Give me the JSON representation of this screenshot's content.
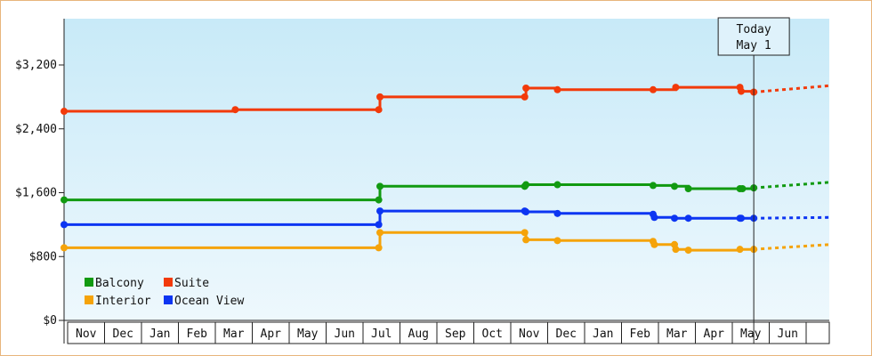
{
  "chart_data": {
    "type": "line",
    "line_style": "step",
    "background": "gradient light-blue",
    "grid": false,
    "legend_position": "bottom-left",
    "x_ticks": [
      "Nov",
      "Dec",
      "Jan",
      "Feb",
      "Mar",
      "Apr",
      "May",
      "Jun",
      "Jul",
      "Aug",
      "Sep",
      "Oct",
      "Nov",
      "Dec",
      "Jan",
      "Feb",
      "Mar",
      "Apr",
      "May",
      "Jun"
    ],
    "x_range": [
      "2013-10-30",
      "2015-06-30"
    ],
    "y_ticks": [
      "$0",
      "$800",
      "$1,600",
      "$2,400",
      "$3,200"
    ],
    "ylim": [
      0,
      3200
    ],
    "today_marker": {
      "line1": "Today",
      "line2": "May 1",
      "date": "2015-05-01"
    },
    "series": [
      {
        "name": "Balcony",
        "color": "#119a11",
        "points": [
          [
            "2013-10-30",
            1510
          ],
          [
            "2014-07-07",
            1510
          ],
          [
            "2014-07-08",
            1680
          ],
          [
            "2014-10-31",
            1680
          ],
          [
            "2014-11-01",
            1700
          ],
          [
            "2014-11-26",
            1700
          ],
          [
            "2015-02-10",
            1690
          ],
          [
            "2015-02-27",
            1680
          ],
          [
            "2015-03-10",
            1650
          ],
          [
            "2015-04-20",
            1650
          ],
          [
            "2015-04-22",
            1650
          ],
          [
            "2015-05-01",
            1660
          ]
        ],
        "forecast": [
          [
            "2015-05-01",
            1660
          ],
          [
            "2015-06-30",
            1730
          ]
        ]
      },
      {
        "name": "Suite",
        "color": "#f23a0a",
        "points": [
          [
            "2013-10-30",
            2620
          ],
          [
            "2014-03-15",
            2640
          ],
          [
            "2014-07-07",
            2640
          ],
          [
            "2014-07-08",
            2800
          ],
          [
            "2014-10-31",
            2800
          ],
          [
            "2014-11-01",
            2910
          ],
          [
            "2014-11-26",
            2890
          ],
          [
            "2015-02-10",
            2890
          ],
          [
            "2015-02-28",
            2920
          ],
          [
            "2015-04-20",
            2920
          ],
          [
            "2015-04-21",
            2870
          ],
          [
            "2015-05-01",
            2860
          ]
        ],
        "forecast": [
          [
            "2015-05-01",
            2860
          ],
          [
            "2015-06-30",
            2940
          ]
        ]
      },
      {
        "name": "Interior",
        "color": "#f5a30a",
        "points": [
          [
            "2013-10-30",
            910
          ],
          [
            "2014-07-07",
            910
          ],
          [
            "2014-07-08",
            1100
          ],
          [
            "2014-10-31",
            1100
          ],
          [
            "2014-11-01",
            1010
          ],
          [
            "2014-11-26",
            1000
          ],
          [
            "2015-02-10",
            990
          ],
          [
            "2015-02-11",
            950
          ],
          [
            "2015-02-27",
            950
          ],
          [
            "2015-02-28",
            890
          ],
          [
            "2015-03-10",
            880
          ],
          [
            "2015-04-20",
            890
          ],
          [
            "2015-05-01",
            890
          ]
        ],
        "forecast": [
          [
            "2015-05-01",
            890
          ],
          [
            "2015-06-30",
            950
          ]
        ]
      },
      {
        "name": "Ocean View",
        "color": "#0c35f2",
        "points": [
          [
            "2013-10-30",
            1200
          ],
          [
            "2014-07-07",
            1200
          ],
          [
            "2014-07-08",
            1370
          ],
          [
            "2014-10-31",
            1370
          ],
          [
            "2014-11-01",
            1360
          ],
          [
            "2014-11-26",
            1340
          ],
          [
            "2015-02-10",
            1330
          ],
          [
            "2015-02-11",
            1290
          ],
          [
            "2015-02-27",
            1280
          ],
          [
            "2015-03-10",
            1280
          ],
          [
            "2015-04-20",
            1280
          ],
          [
            "2015-04-21",
            1280
          ],
          [
            "2015-05-01",
            1280
          ]
        ],
        "forecast": [
          [
            "2015-05-01",
            1280
          ],
          [
            "2015-06-30",
            1290
          ]
        ]
      }
    ],
    "legend": [
      {
        "label": "Balcony",
        "color": "#119a11"
      },
      {
        "label": "Suite",
        "color": "#f23a0a"
      },
      {
        "label": "Interior",
        "color": "#f5a30a"
      },
      {
        "label": "Ocean View",
        "color": "#0c35f2"
      }
    ]
  }
}
